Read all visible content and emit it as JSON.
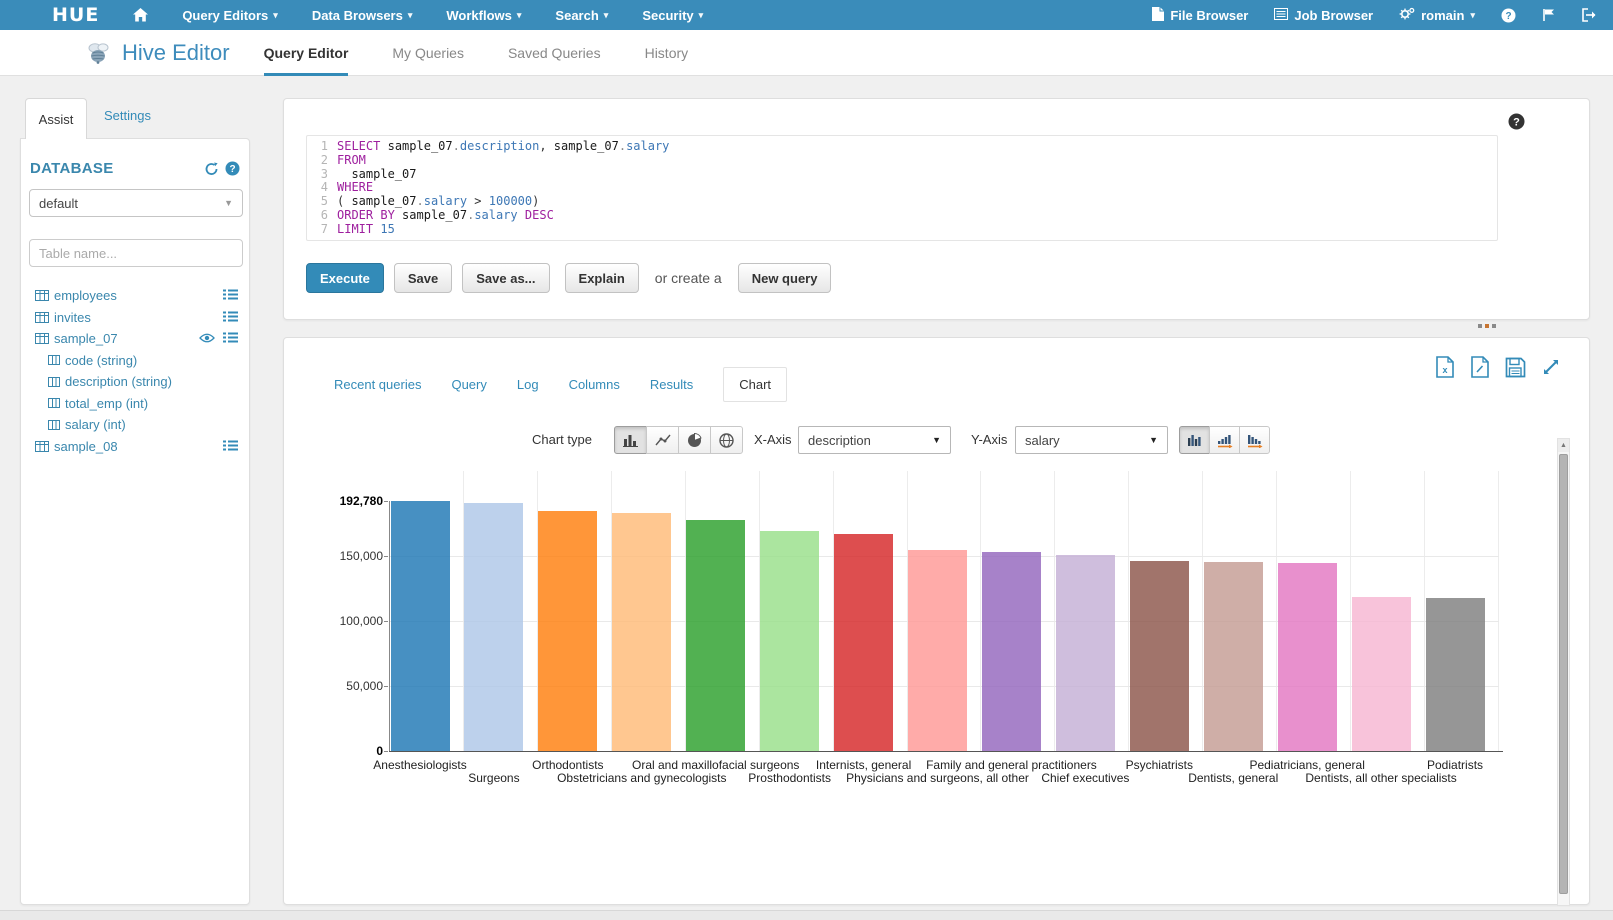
{
  "topnav": {
    "logo_text": "HUE",
    "menus": [
      "Query Editors",
      "Data Browsers",
      "Workflows",
      "Search",
      "Security"
    ],
    "file_browser": "File Browser",
    "job_browser": "Job Browser",
    "user": "romain",
    "right_icons": [
      "help-icon",
      "flag-icon",
      "logout-icon"
    ]
  },
  "header": {
    "app_title": "Hive Editor",
    "tabs": [
      {
        "label": "Query Editor",
        "active": true
      },
      {
        "label": "My Queries",
        "active": false
      },
      {
        "label": "Saved Queries",
        "active": false
      },
      {
        "label": "History",
        "active": false
      }
    ]
  },
  "assist": {
    "tabs": [
      {
        "label": "Assist",
        "active": true
      },
      {
        "label": "Settings",
        "active": false
      }
    ],
    "database_label": "DATABASE",
    "database_value": "default",
    "header_icons": [
      "refresh-icon",
      "help-circle-icon"
    ],
    "table_filter_placeholder": "Table name...",
    "tables": [
      {
        "name": "employees",
        "eye": false,
        "columns": []
      },
      {
        "name": "invites",
        "eye": false,
        "columns": []
      },
      {
        "name": "sample_07",
        "eye": true,
        "columns": [
          {
            "label": "code (string)"
          },
          {
            "label": "description (string)"
          },
          {
            "label": "total_emp (int)"
          },
          {
            "label": "salary (int)"
          }
        ]
      },
      {
        "name": "sample_08",
        "eye": false,
        "columns": []
      }
    ]
  },
  "editor": {
    "help_icon": "help-circle-dark-icon",
    "lines": [
      {
        "n": "1",
        "segs": [
          [
            "SELECT",
            "kw"
          ],
          [
            " ",
            "pl"
          ],
          [
            "sample_07",
            "id"
          ],
          [
            ".",
            "dt"
          ],
          [
            "description",
            "fl"
          ],
          [
            ", ",
            "pl"
          ],
          [
            "sample_07",
            "id"
          ],
          [
            ".",
            "dt"
          ],
          [
            "salary",
            "fl"
          ]
        ]
      },
      {
        "n": "2",
        "segs": [
          [
            "FROM",
            "kw"
          ]
        ]
      },
      {
        "n": "3",
        "segs": [
          [
            "  sample_07",
            "id"
          ]
        ]
      },
      {
        "n": "4",
        "segs": [
          [
            "WHERE",
            "kw"
          ]
        ]
      },
      {
        "n": "5",
        "segs": [
          [
            "( ",
            "pl"
          ],
          [
            "sample_07",
            "id"
          ],
          [
            ".",
            "dt"
          ],
          [
            "salary",
            "fl"
          ],
          [
            " > ",
            "pl"
          ],
          [
            "100000",
            "nm"
          ],
          [
            ")",
            "pl"
          ]
        ]
      },
      {
        "n": "6",
        "segs": [
          [
            "ORDER",
            "kw"
          ],
          [
            " ",
            "pl"
          ],
          [
            "BY",
            "kw"
          ],
          [
            " ",
            "pl"
          ],
          [
            "sample_07",
            "id"
          ],
          [
            ".",
            "dt"
          ],
          [
            "salary",
            "fl"
          ],
          [
            " ",
            "pl"
          ],
          [
            "DESC",
            "kw"
          ]
        ]
      },
      {
        "n": "7",
        "segs": [
          [
            "LIMIT",
            "kw"
          ],
          [
            " ",
            "pl"
          ],
          [
            "15",
            "nm"
          ]
        ]
      }
    ],
    "buttons": {
      "execute": "Execute",
      "save": "Save",
      "save_as": "Save as...",
      "explain": "Explain",
      "or_create": "or create a",
      "new_query": "New query"
    }
  },
  "results": {
    "toolbar_icons": [
      "excel-export-icon",
      "document-export-icon",
      "save-results-icon",
      "expand-icon"
    ],
    "tabs": [
      {
        "label": "Recent queries",
        "active": false
      },
      {
        "label": "Query",
        "active": false
      },
      {
        "label": "Log",
        "active": false
      },
      {
        "label": "Columns",
        "active": false
      },
      {
        "label": "Results",
        "active": false
      },
      {
        "label": "Chart",
        "active": true
      }
    ],
    "controls": {
      "chart_type_label": "Chart type",
      "chart_type_icons": [
        "bars-chart-icon",
        "line-chart-icon",
        "pie-chart-icon",
        "map-chart-icon"
      ],
      "chart_type_active_index": 0,
      "x_axis_label": "X-Axis",
      "x_axis_value": "description",
      "y_axis_label": "Y-Axis",
      "y_axis_value": "salary",
      "layout_icons": [
        "grouped-bars-icon",
        "sorted-asc-bars-icon",
        "sorted-desc-bars-icon"
      ],
      "layout_active_index": 0
    }
  },
  "chart_data": {
    "type": "bar",
    "title": "",
    "xlabel": "description",
    "ylabel": "salary",
    "categories": [
      "Anesthesiologists",
      "Surgeons",
      "Orthodontists",
      "Obstetricians and gynecologists",
      "Oral and maxillofacial surgeons",
      "Prosthodontists",
      "Internists, general",
      "Physicians and surgeons, all other",
      "Family and general practitioners",
      "Chief executives",
      "Psychiatrists",
      "Dentists, general",
      "Pediatricians, general",
      "Dentists, all other specialists",
      "Podiatrists"
    ],
    "values": [
      192780,
      191410,
      185340,
      183600,
      178440,
      169810,
      167270,
      155150,
      153640,
      151370,
      146150,
      146080,
      145210,
      118400,
      118220
    ],
    "colors": [
      "#1f77b4",
      "#aec7e8",
      "#ff7f0e",
      "#ffbb78",
      "#2ca02c",
      "#98df8a",
      "#d62728",
      "#ff9896",
      "#9467bd",
      "#c5b0d5",
      "#8c564b",
      "#c49c94",
      "#e377c2",
      "#f7b6d2",
      "#7f7f7f"
    ],
    "ylim": [
      0,
      192780
    ],
    "y_ticks": [
      0,
      50000,
      100000,
      150000,
      192780
    ],
    "y_tick_labels": [
      "0",
      "50,000",
      "100,000",
      "150,000",
      "192,780"
    ],
    "grid": true,
    "legend": "none"
  }
}
